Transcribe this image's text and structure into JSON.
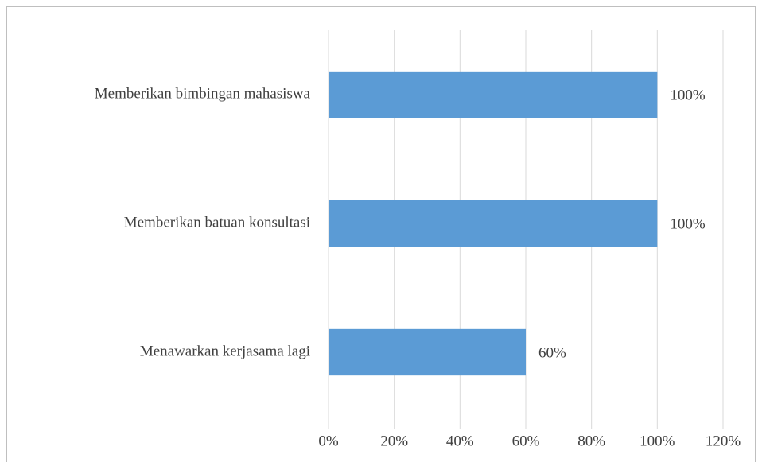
{
  "chart_data": {
    "type": "bar",
    "orientation": "horizontal",
    "categories": [
      "Memberikan bimbingan mahasiswa",
      "Memberikan batuan konsultasi",
      "Menawarkan kerjasama lagi"
    ],
    "values": [
      100,
      100,
      60
    ],
    "value_labels": [
      "100%",
      "100%",
      "60%"
    ],
    "color": "#5b9bd5",
    "xlim": [
      0,
      120
    ],
    "xticks": [
      {
        "value": 0,
        "label": "0%"
      },
      {
        "value": 20,
        "label": "20%"
      },
      {
        "value": 40,
        "label": "40%"
      },
      {
        "value": 60,
        "label": "60%"
      },
      {
        "value": 80,
        "label": "80%"
      },
      {
        "value": 100,
        "label": "100%"
      },
      {
        "value": 120,
        "label": "120%"
      }
    ],
    "grid": true
  }
}
